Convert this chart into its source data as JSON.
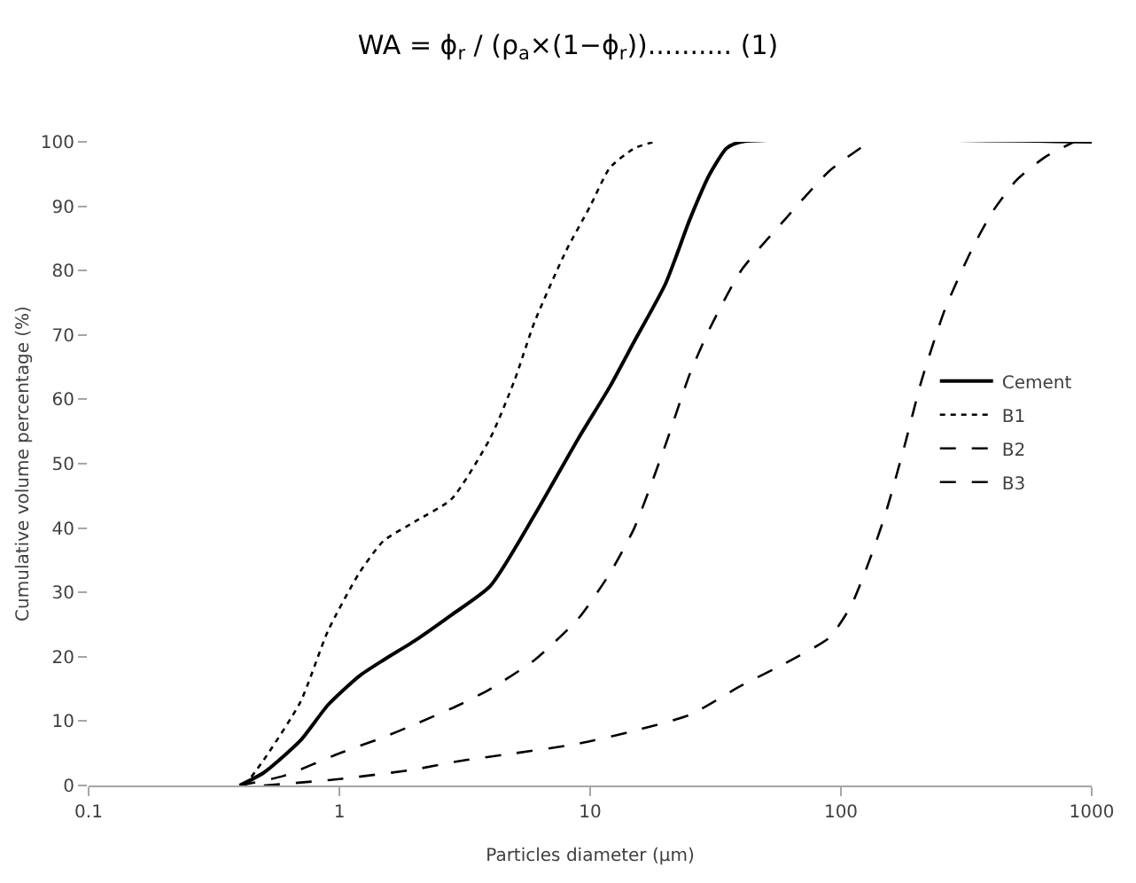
{
  "chart_data": {
    "type": "line",
    "title": "WA = ϕ$_{r}$ / (ρ$_{a}$×(1−ϕ$_{r}$)).......... (1)",
    "xlabel": "Particles diameter (µm)",
    "ylabel": "Cumulative volume percentage (%)",
    "log": "x",
    "xlim": [
      0.1,
      1000
    ],
    "xticks": [
      0.1,
      1,
      10,
      100,
      1000
    ],
    "ylim": [
      0,
      100
    ],
    "yticks": [
      0,
      10,
      20,
      30,
      40,
      50,
      60,
      70,
      80,
      90,
      100
    ],
    "grid": false,
    "legend": "right",
    "marker": "none",
    "series": [
      {
        "name": "Cement",
        "color": "#000000",
        "line_style": "solid",
        "x": [
          0.4,
          0.5,
          0.7,
          0.9,
          1.2,
          1.5,
          2,
          2.8,
          4,
          6,
          9,
          12,
          15,
          20,
          25,
          30,
          35,
          40,
          1000
        ],
        "values": [
          0,
          2,
          7,
          12.5,
          17,
          19.5,
          22.5,
          26.5,
          31,
          42,
          54,
          62,
          69,
          78,
          88,
          95,
          99,
          100,
          100
        ]
      },
      {
        "name": "B1",
        "color": "#000000",
        "line_style": "dotted",
        "x": [
          0.42,
          0.5,
          0.7,
          0.9,
          1.2,
          1.5,
          2,
          2.8,
          4,
          5,
          6,
          8,
          10,
          12,
          15,
          18
        ],
        "values": [
          0,
          4,
          13,
          24,
          33,
          38,
          41,
          44.5,
          54,
          63,
          72,
          83,
          90,
          96,
          99,
          100
        ]
      },
      {
        "name": "B2",
        "color": "#000000",
        "line_style": "dashed",
        "x": [
          0.4,
          0.6,
          1,
          1.5,
          2,
          3,
          4,
          6,
          9,
          12,
          15,
          20,
          25,
          30,
          40,
          60,
          90,
          130
        ],
        "values": [
          0,
          1.5,
          5,
          7.5,
          9.5,
          12.5,
          15,
          19.5,
          26,
          33,
          40,
          53,
          64,
          71,
          80,
          88,
          95.5,
          100
        ]
      },
      {
        "name": "B3",
        "color": "#000000",
        "line_style": "dashed",
        "x": [
          0.5,
          1,
          2,
          3,
          5,
          9,
          15,
          25,
          40,
          60,
          90,
          110,
          130,
          150,
          180,
          210,
          260,
          330,
          400,
          500,
          650,
          850
        ],
        "values": [
          0,
          1,
          2.5,
          3.8,
          5,
          6.5,
          8.5,
          11,
          15.5,
          19,
          23,
          28,
          35,
          42,
          53,
          63,
          74,
          83,
          89,
          94,
          97.6,
          100
        ]
      }
    ]
  }
}
